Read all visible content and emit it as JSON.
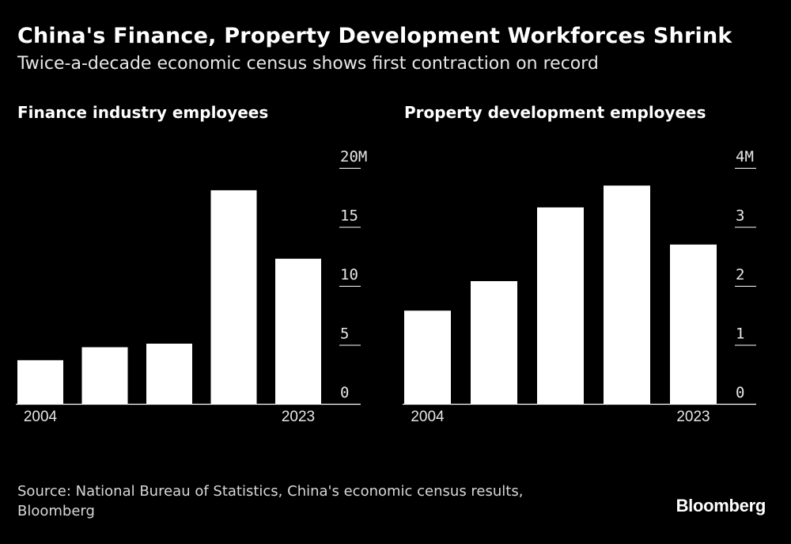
{
  "title": "China's Finance, Property Development Workforces Shrink",
  "subtitle": "Twice-a-decade economic census shows first contraction on record",
  "source": "Source: National Bureau of Statistics, China's economic census results, Bloomberg",
  "logo": "Bloomberg",
  "colors": {
    "background": "#000000",
    "bar": "#ffffff",
    "text": "#ffffff"
  },
  "chart_data": [
    {
      "type": "bar",
      "title": "Finance industry employees",
      "x_tick_labels": [
        "2004",
        "",
        "",
        "",
        "2023"
      ],
      "values": [
        3.7,
        4.8,
        5.1,
        18.1,
        12.3
      ],
      "ylim": [
        0,
        20
      ],
      "y_ticks": [
        {
          "value": 0,
          "label": "0"
        },
        {
          "value": 5,
          "label": "5"
        },
        {
          "value": 10,
          "label": "10"
        },
        {
          "value": 15,
          "label": "15"
        },
        {
          "value": 20,
          "label": "20M"
        }
      ]
    },
    {
      "type": "bar",
      "title": "Property development employees",
      "x_tick_labels": [
        "2004",
        "",
        "",
        "",
        "2023"
      ],
      "values": [
        1.58,
        2.08,
        3.33,
        3.7,
        2.7
      ],
      "ylim": [
        0,
        4
      ],
      "y_ticks": [
        {
          "value": 0,
          "label": "0"
        },
        {
          "value": 1,
          "label": "1"
        },
        {
          "value": 2,
          "label": "2"
        },
        {
          "value": 3,
          "label": "3"
        },
        {
          "value": 4,
          "label": "4M"
        }
      ]
    }
  ]
}
